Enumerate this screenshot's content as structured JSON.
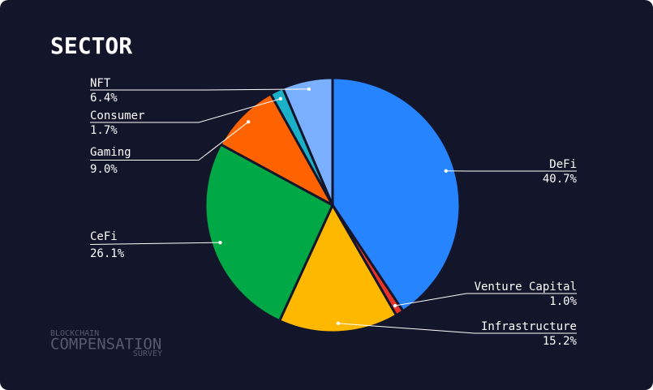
{
  "chart_data": {
    "type": "pie",
    "title": "SECTOR",
    "categories": [
      "DeFi",
      "Venture Capital",
      "Infrastructure",
      "CeFi",
      "Gaming",
      "Consumer",
      "NFT"
    ],
    "values": [
      40.7,
      1.0,
      15.2,
      26.1,
      9.0,
      1.7,
      6.4
    ],
    "value_labels": [
      "40.7%",
      "1.0%",
      "15.2%",
      "26.1%",
      "9.0%",
      "1.7%",
      "6.4%"
    ],
    "colors": [
      "#2684ff",
      "#e8332a",
      "#ffb800",
      "#00a846",
      "#ff6200",
      "#1ab0c8",
      "#7ab0ff"
    ]
  },
  "watermark": {
    "line1": "BLOCKCHAIN",
    "line2": "COMPENSATION",
    "line3": "SURVEY"
  }
}
